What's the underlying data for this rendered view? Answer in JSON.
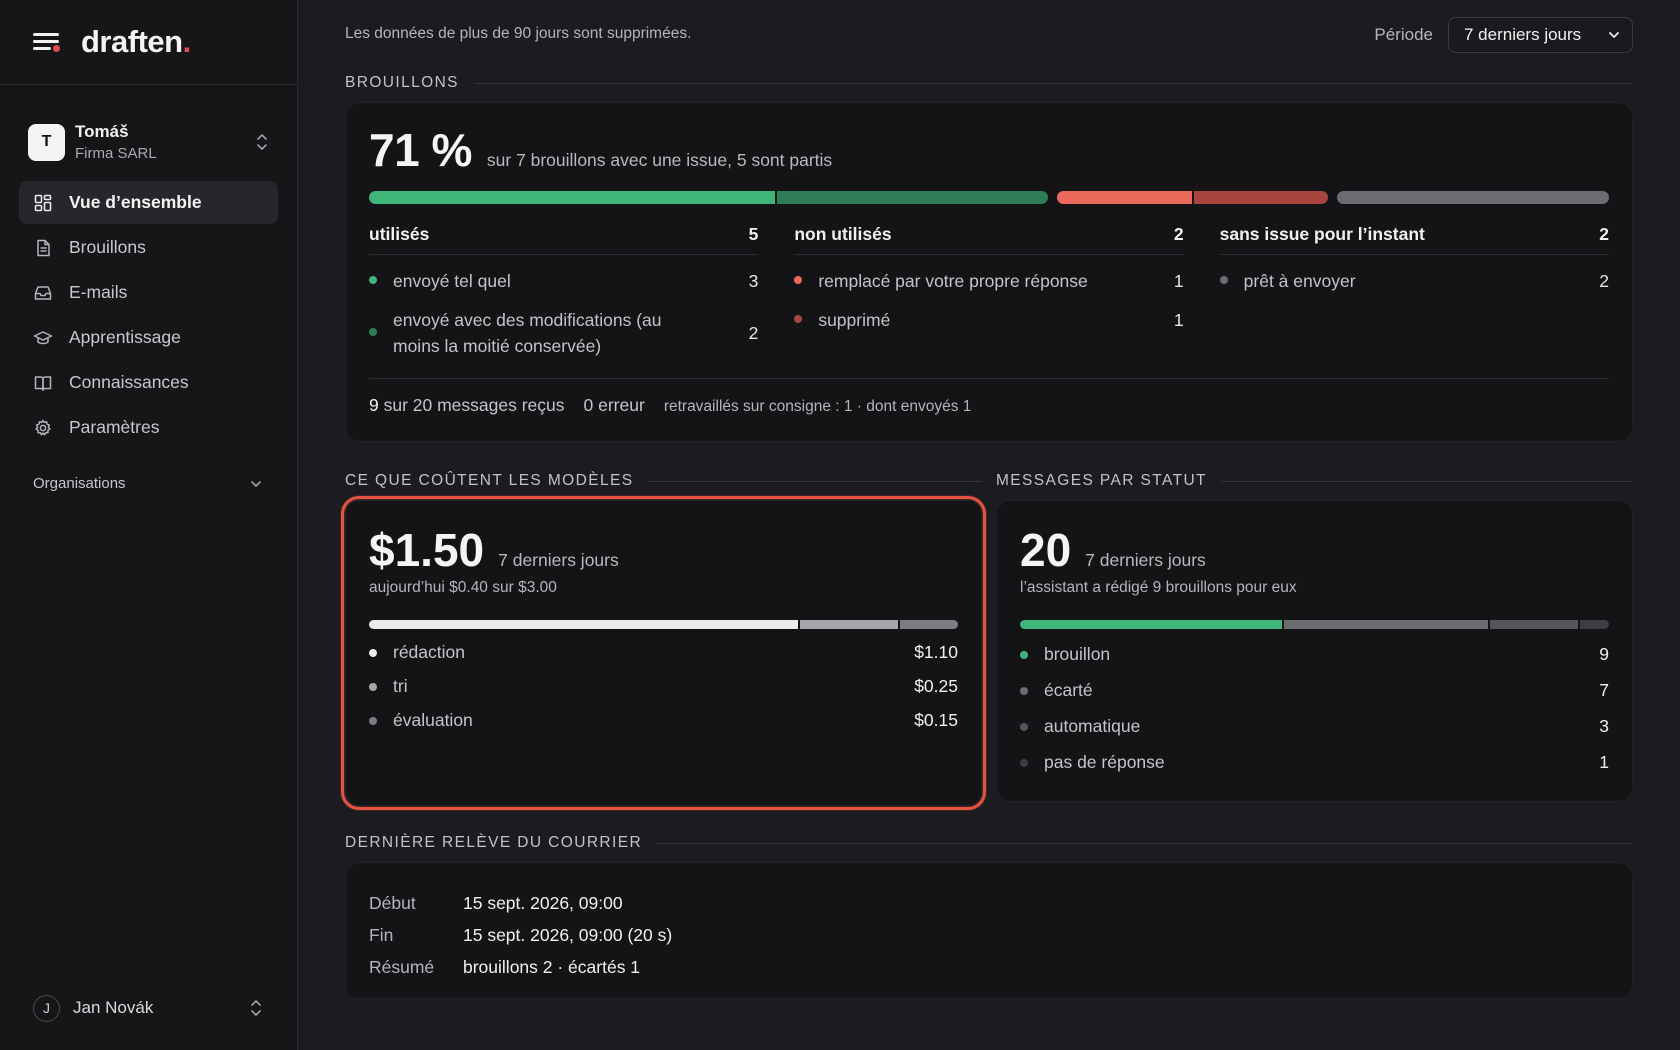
{
  "brand": {
    "name": "draften",
    "dot": "."
  },
  "account": {
    "initial": "T",
    "name": "Tomáš",
    "org": "Firma SARL"
  },
  "nav": [
    {
      "label": "Vue d’ensemble",
      "icon": "dashboard-icon",
      "active": true
    },
    {
      "label": "Brouillons",
      "icon": "document-icon"
    },
    {
      "label": "E-mails",
      "icon": "inbox-icon"
    },
    {
      "label": "Apprentissage",
      "icon": "graduation-cap-icon"
    },
    {
      "label": "Connaissances",
      "icon": "book-icon"
    },
    {
      "label": "Paramètres",
      "icon": "gear-icon"
    }
  ],
  "organisations": {
    "label": "Organisations"
  },
  "user": {
    "initial": "J",
    "name": "Jan Novák"
  },
  "topbar": {
    "retention": "Les données de plus de 90 jours sont supprimées.",
    "period_label": "Période",
    "period_value": "7 derniers jours"
  },
  "drafts": {
    "section_title": "BROUILLONS",
    "kpi": "71 %",
    "kpi_sub": "sur 7 brouillons avec une issue, 5 sont partis",
    "used": {
      "title": "utilisés",
      "count": "5",
      "items": [
        {
          "label": "envoyé tel quel",
          "value": "3"
        },
        {
          "label": "envoyé avec des modifications (au moins la moitié conservée)",
          "value": "2"
        }
      ]
    },
    "unused": {
      "title": "non utilisés",
      "count": "2",
      "items": [
        {
          "label": "remplacé par votre propre réponse",
          "value": "1"
        },
        {
          "label": "supprimé",
          "value": "1"
        }
      ]
    },
    "pending": {
      "title": "sans issue pour l’instant",
      "count": "2",
      "items": [
        {
          "label": "prêt à envoyer",
          "value": "2"
        }
      ]
    },
    "footer": {
      "received_count": "9",
      "received_text": "sur 20 messages reçus",
      "errors": "0 erreur",
      "reworked": "retravaillés sur consigne : 1 · dont envoyés 1"
    },
    "colors": {
      "green": "#3fb57a",
      "green_dark": "#2f7d57",
      "red": "#ec6a5c",
      "red_dark": "#a8453d",
      "grey": "#6b6b72"
    }
  },
  "costs": {
    "section_title": "CE QUE COÛTENT LES MODÈLES",
    "total": "$1.50",
    "period": "7 derniers jours",
    "today": "aujourd’hui $0.40 sur $3.00",
    "items": [
      {
        "label": "rédaction",
        "value": "$1.10",
        "amount": 1.1,
        "color": "#ececee"
      },
      {
        "label": "tri",
        "value": "$0.25",
        "amount": 0.25,
        "color": "#a6a6ab"
      },
      {
        "label": "évaluation",
        "value": "$0.15",
        "amount": 0.15,
        "color": "#7c7c82"
      }
    ]
  },
  "messages": {
    "section_title": "MESSAGES PAR STATUT",
    "total": "20",
    "period": "7 derniers jours",
    "subtitle": "l’assistant a rédigé 9 brouillons pour eux",
    "items": [
      {
        "label": "brouillon",
        "value": "9",
        "count": 9,
        "color": "#3fb57a"
      },
      {
        "label": "écarté",
        "value": "7",
        "count": 7,
        "color": "#6b6b72"
      },
      {
        "label": "automatique",
        "value": "3",
        "count": 3,
        "color": "#55555b"
      },
      {
        "label": "pas de réponse",
        "value": "1",
        "count": 1,
        "color": "#3d3d43"
      }
    ]
  },
  "last_mail": {
    "section_title": "DERNIÈRE RELÈVE DU COURRIER",
    "rows": [
      {
        "key": "Début",
        "value": "15 sept. 2026, 09:00"
      },
      {
        "key": "Fin",
        "value": "15 sept. 2026, 09:00 (20 s)"
      },
      {
        "key": "Résumé",
        "value": "brouillons 2 · écartés 1"
      }
    ]
  }
}
